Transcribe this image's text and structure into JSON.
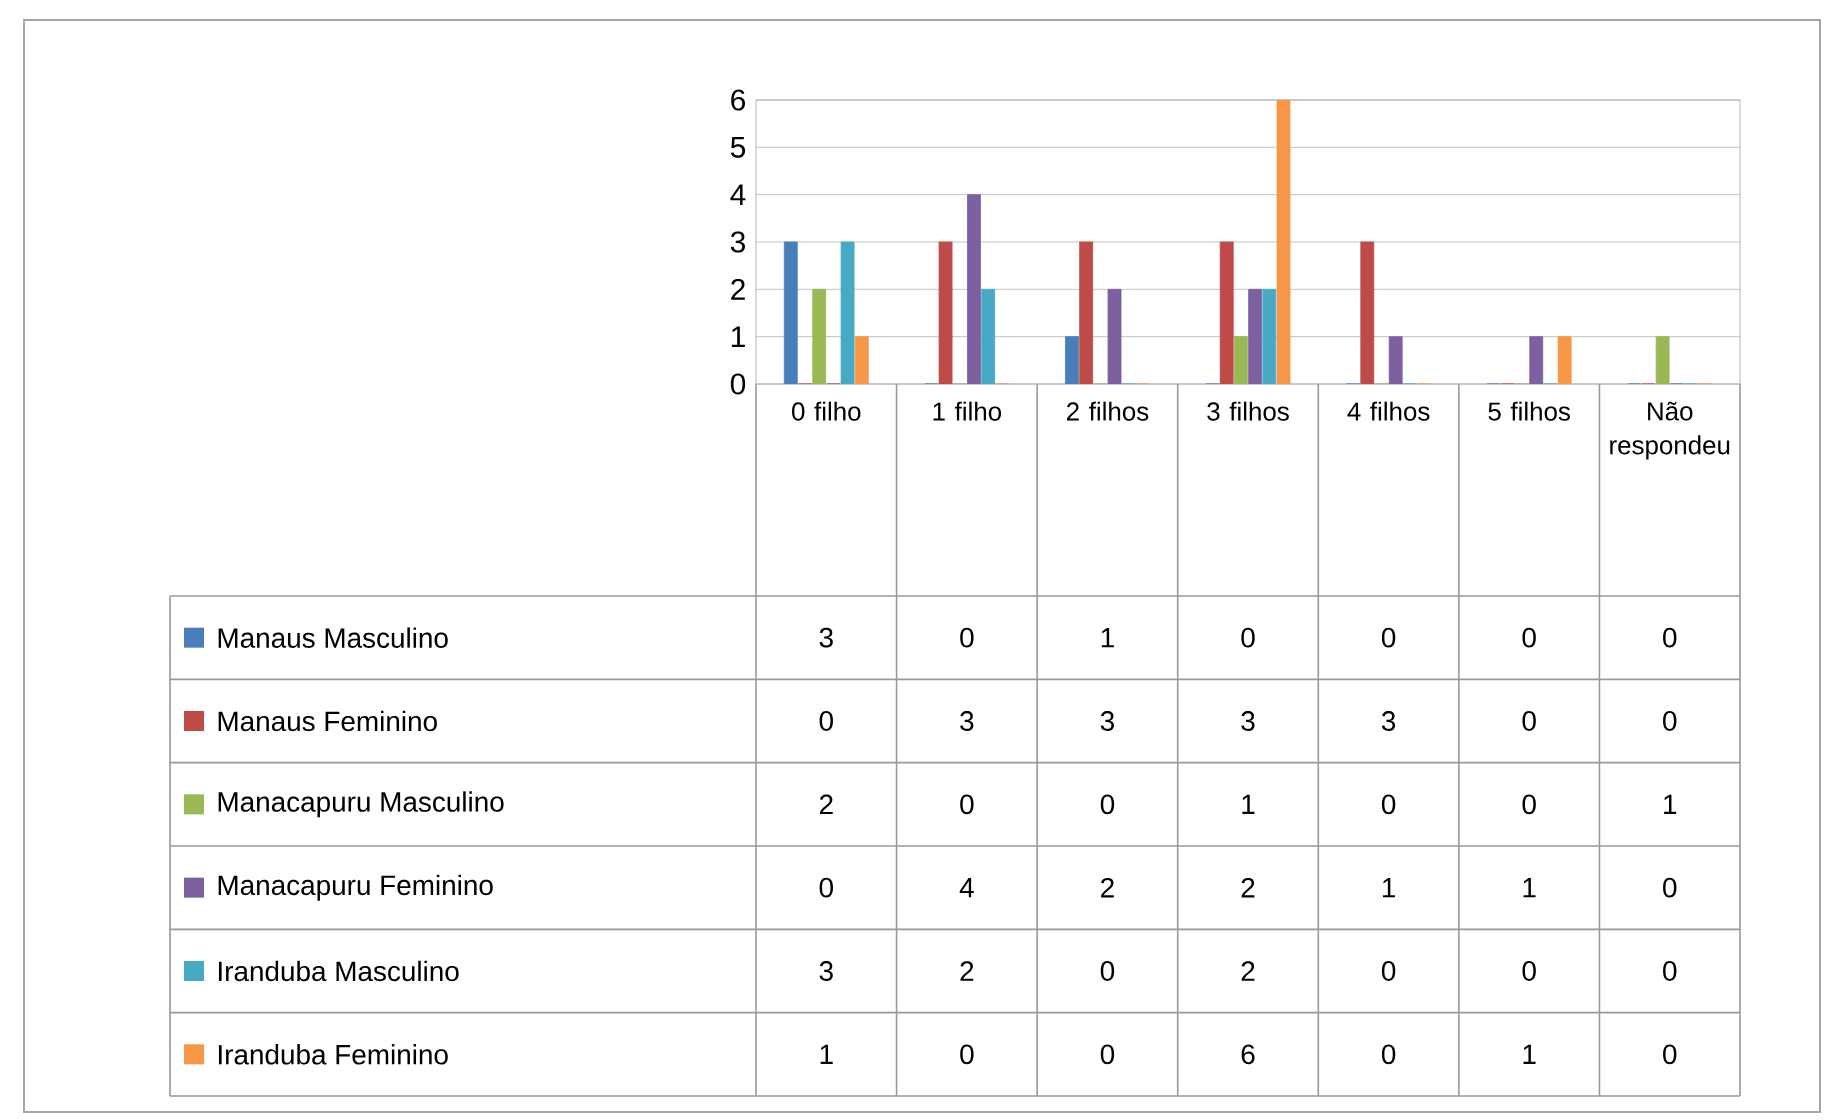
{
  "chart_data": {
    "type": "bar",
    "categories": [
      "0 filho",
      "1 filho",
      "2 filhos",
      "3 filhos",
      "4 filhos",
      "5 filhos",
      "Não respondeu"
    ],
    "series": [
      {
        "name": "Manaus Masculino",
        "color": "#4a7ebb",
        "values": [
          3,
          0,
          1,
          0,
          0,
          0,
          0
        ]
      },
      {
        "name": "Manaus Feminino",
        "color": "#be4b48",
        "values": [
          0,
          3,
          3,
          3,
          3,
          0,
          0
        ]
      },
      {
        "name": "Manacapuru Masculino",
        "color": "#98b954",
        "values": [
          2,
          0,
          0,
          1,
          0,
          0,
          1
        ]
      },
      {
        "name": "Manacapuru Feminino",
        "color": "#7d60a0",
        "values": [
          0,
          4,
          2,
          2,
          1,
          1,
          0
        ]
      },
      {
        "name": "Iranduba Masculino",
        "color": "#46aac5",
        "values": [
          3,
          2,
          0,
          2,
          0,
          0,
          0
        ]
      },
      {
        "name": "Iranduba Feminino",
        "color": "#f79646",
        "values": [
          1,
          0,
          0,
          6,
          0,
          1,
          0
        ]
      }
    ],
    "ylim": [
      0,
      6
    ],
    "yticks": [
      0,
      1,
      2,
      3,
      4,
      5,
      6
    ],
    "grid": "y",
    "legend": "bottom",
    "data_labels": true
  }
}
